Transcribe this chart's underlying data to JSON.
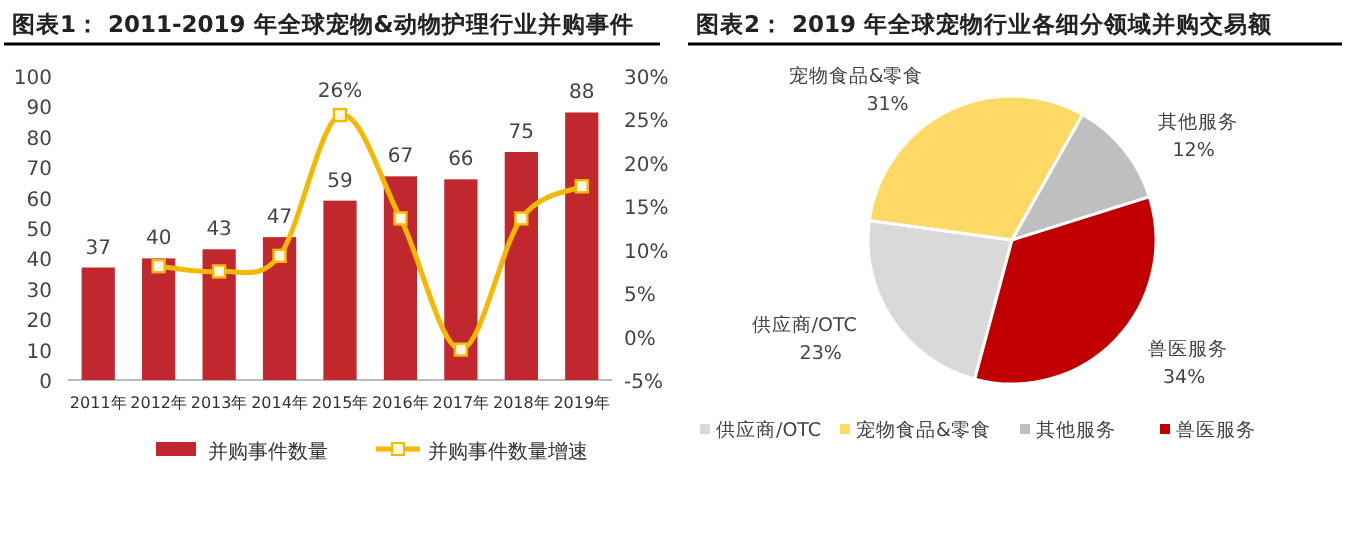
{
  "chart_data": [
    {
      "type": "bar",
      "title": "图表1：  2011-2019 年全球宠物&动物护理行业并购事件",
      "categories": [
        "2011年",
        "2012年",
        "2013年",
        "2014年",
        "2015年",
        "2016年",
        "2017年",
        "2018年",
        "2019年"
      ],
      "series": [
        {
          "name": "并购事件数量",
          "type": "bar",
          "color": "#c0282d",
          "values": [
            37,
            40,
            43,
            47,
            59,
            67,
            66,
            75,
            88
          ],
          "value_labels": [
            "37",
            "40",
            "43",
            "47",
            "59",
            "67",
            "66",
            "75",
            "88"
          ]
        },
        {
          "name": "并购事件数量增速",
          "type": "line",
          "axis": "y2",
          "color": "#f5b800",
          "marker": "square",
          "values": [
            null,
            8.1,
            7.5,
            9.3,
            25.5,
            13.6,
            -1.5,
            13.6,
            17.3
          ],
          "value_labels": [
            null,
            null,
            null,
            null,
            "26%",
            null,
            null,
            null,
            null
          ]
        }
      ],
      "ylim": [
        0,
        100
      ],
      "yticks": [
        0,
        10,
        20,
        30,
        40,
        50,
        60,
        70,
        80,
        90,
        100
      ],
      "y2lim": [
        -5,
        30
      ],
      "y2ticks": [
        {
          "value": -5,
          "label": "-5%"
        },
        {
          "value": 0,
          "label": "0%"
        },
        {
          "value": 5,
          "label": "5%"
        },
        {
          "value": 10,
          "label": "10%"
        },
        {
          "value": 15,
          "label": "15%"
        },
        {
          "value": 20,
          "label": "20%"
        },
        {
          "value": 25,
          "label": "25%"
        },
        {
          "value": 30,
          "label": "30%"
        }
      ],
      "grid": false,
      "legend": "bottom"
    },
    {
      "type": "pie",
      "title": "图表2：  2019 年全球宠物行业各细分领域并购交易额",
      "categories": [
        "供应商/OTC",
        "宠物食品&零食",
        "其他服务",
        "兽医服务"
      ],
      "values": [
        23,
        31,
        12,
        34
      ],
      "colors": [
        "#d9d9d9",
        "#ffd966",
        "#bfbfbf",
        "#c00000"
      ],
      "value_labels": [
        "23%",
        "31%",
        "12%",
        "34%"
      ],
      "legend": "bottom"
    }
  ]
}
